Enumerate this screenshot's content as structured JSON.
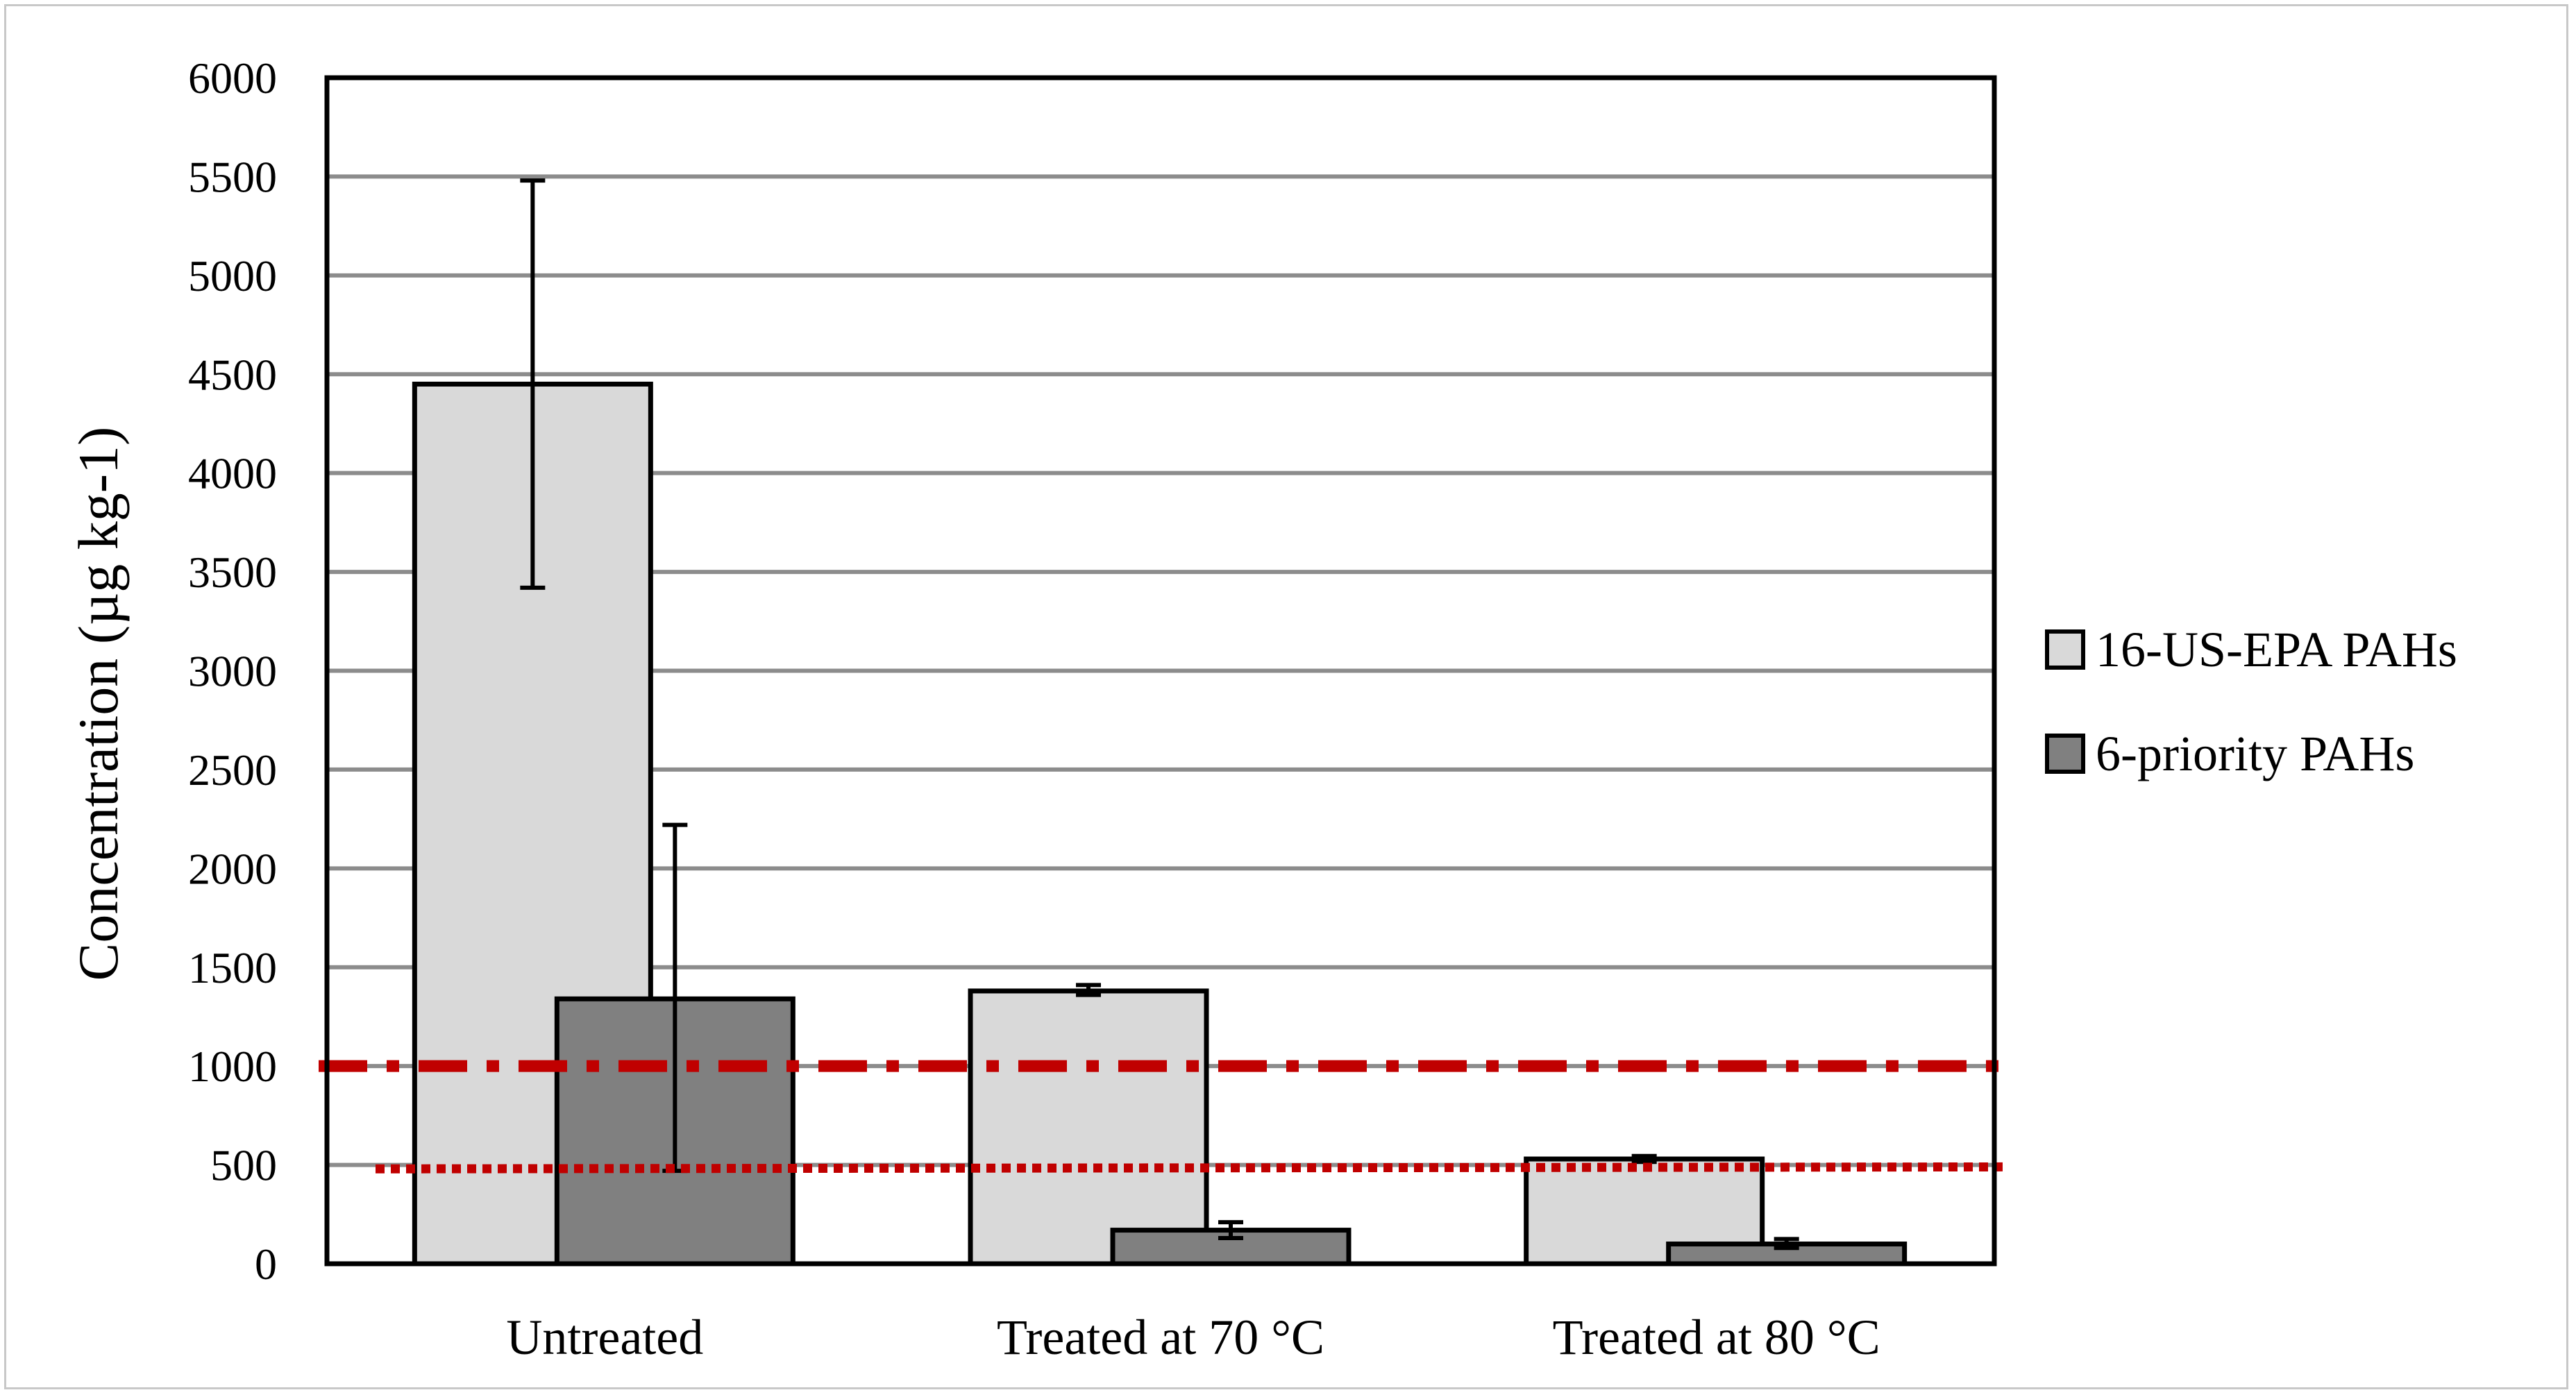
{
  "chart_data": {
    "type": "bar",
    "title": "",
    "xlabel": "",
    "ylabel": "Concentration (µg kg-1)",
    "ylim": [
      0,
      6000
    ],
    "yticks": [
      0,
      500,
      1000,
      1500,
      2000,
      2500,
      3000,
      3500,
      4000,
      4500,
      5000,
      5500,
      6000
    ],
    "grid": true,
    "legend_position": "right",
    "categories": [
      "Untreated",
      "Treated at 70 °C",
      "Treated at 80 °C"
    ],
    "series": [
      {
        "name": "16-US-EPA PAHs",
        "color": "#d9d9d9",
        "values": [
          4450,
          1380,
          530
        ],
        "error": [
          [
            3420,
            5480
          ],
          [
            1360,
            1410
          ],
          [
            515,
            545
          ]
        ]
      },
      {
        "name": "6-priority PAHs",
        "color": "#808080",
        "values": [
          1340,
          170,
          100
        ],
        "error": [
          [
            470,
            2220
          ],
          [
            130,
            210
          ],
          [
            80,
            125
          ]
        ]
      }
    ],
    "reference_lines": [
      {
        "value": 1000,
        "style": "dash-dot",
        "color": "#c00000"
      },
      {
        "value": 480,
        "style": "dotted",
        "color": "#c00000",
        "end_value": 490
      }
    ]
  }
}
